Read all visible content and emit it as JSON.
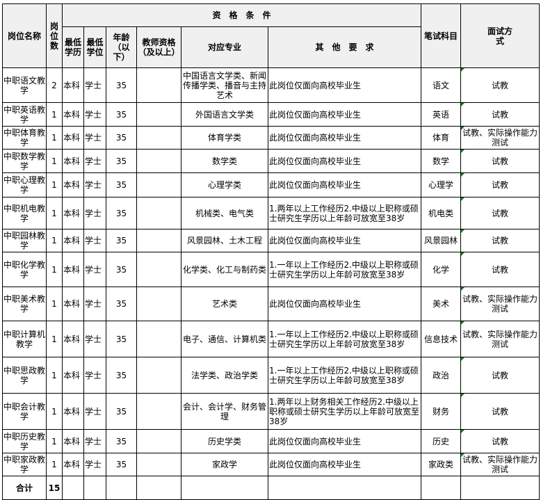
{
  "header": {
    "position_name": "岗位名称",
    "count": "岗位数",
    "qualifications": "资　格　条　件",
    "min_education": "最低学历",
    "min_degree": "最低学位",
    "age": "年龄（以下）",
    "teacher_cert": "教师资格（及以上）",
    "major": "对应专业",
    "other": "其　他　要　求",
    "written_subject": "笔试科目",
    "interview": "面试方式"
  },
  "rows": [
    {
      "name": "中职语文教学",
      "count": "2",
      "edu": "本科",
      "degree": "学士",
      "age": "35",
      "cert": "",
      "major": "中国语言文学类、新闻传播学类、播音与主持艺术",
      "other": "此岗位仅面向高校毕业生",
      "subject": "语文",
      "interview": "试教"
    },
    {
      "name": "中职英语教学",
      "count": "1",
      "edu": "本科",
      "degree": "学士",
      "age": "35",
      "cert": "",
      "major": "外国语言文学类",
      "other": "此岗位仅面向高校毕业生",
      "subject": "英语",
      "interview": "试教"
    },
    {
      "name": "中职体育教学",
      "count": "1",
      "edu": "本科",
      "degree": "学士",
      "age": "35",
      "cert": "",
      "major": "体育学类",
      "other": "此岗位仅面向高校毕业生",
      "subject": "体育",
      "interview": "试教、实际操作能力测试"
    },
    {
      "name": "中职数学教学",
      "count": "1",
      "edu": "本科",
      "degree": "学士",
      "age": "35",
      "cert": "",
      "major": "数学类",
      "other": "此岗位仅面向高校毕业生",
      "subject": "数学",
      "interview": "试教"
    },
    {
      "name": "中职心理教学",
      "count": "1",
      "edu": "本科",
      "degree": "学士",
      "age": "35",
      "cert": "",
      "major": "心理学类",
      "other": "此岗位仅面向高校毕业生",
      "subject": "心理学",
      "interview": "试教"
    },
    {
      "name": "中职机电教学",
      "count": "1",
      "edu": "本科",
      "degree": "学士",
      "age": "35",
      "cert": "",
      "major": "机械类、电气类",
      "other": "1.两年以上工作经历2.中级以上职称或硕士研究生学历以上年龄可放宽至38岁",
      "subject": "机电类",
      "interview": "试教"
    },
    {
      "name": "中职园林教学",
      "count": "1",
      "edu": "本科",
      "degree": "学士",
      "age": "35",
      "cert": "",
      "major": "风景园林、土木工程",
      "other": "此岗位仅面向高校毕业生",
      "subject": "风景园林",
      "interview": "试教"
    },
    {
      "name": "中职化学教学",
      "count": "1",
      "edu": "本科",
      "degree": "学士",
      "age": "35",
      "cert": "",
      "major": "化学类、化工与制药类",
      "other": "1.一年以上工作经历2.中级以上职称或硕士研究生学历以上年龄可放宽至38岁",
      "subject": "化学",
      "interview": "试教"
    },
    {
      "name": "中职美术教学",
      "count": "1",
      "edu": "本科",
      "degree": "学士",
      "age": "35",
      "cert": "",
      "major": "艺术类",
      "other": "此岗位仅面向高校毕业生",
      "subject": "美术",
      "interview": "试教、实际操作能力测试"
    },
    {
      "name": "中职计算机教学",
      "count": "1",
      "edu": "本科",
      "degree": "学士",
      "age": "35",
      "cert": "",
      "major": "电子、通信、计算机类",
      "other": "1.一年以上工作经历2.中级以上职称或硕士研究生学历以上年龄可放宽至38岁",
      "subject": "信息技术",
      "interview": "试教、实际操作能力测试"
    },
    {
      "name": "中职思政教学",
      "count": "1",
      "edu": "本科",
      "degree": "学士",
      "age": "35",
      "cert": "",
      "major": "法学类、政治学类",
      "other": "1.一年以上工作经历2.中级以上职称或硕士研究生学历以上年龄可放宽至38岁",
      "subject": "政治",
      "interview": "试教"
    },
    {
      "name": "中职会计教学",
      "count": "1",
      "edu": "本科",
      "degree": "学士",
      "age": "35",
      "cert": "",
      "major": "会计、会计学、财务管理",
      "other": "1.两年以上财务相关工作经历2.中级以上职称或硕士研究生学历以上年龄可放宽至38岁",
      "subject": "财务",
      "interview": "试教"
    },
    {
      "name": "中职历史教学",
      "count": "1",
      "edu": "本科",
      "degree": "学士",
      "age": "35",
      "cert": "",
      "major": "历史学类",
      "other": "此岗位仅面向高校毕业生",
      "subject": "历史",
      "interview": "试教"
    },
    {
      "name": "中职家政教学",
      "count": "1",
      "edu": "本科",
      "degree": "学士",
      "age": "35",
      "cert": "",
      "major": "家政学",
      "other": "此岗位仅面向高校毕业生",
      "subject": "家政类",
      "interview": "试教、实际操作能力测试"
    }
  ],
  "total": {
    "label": "合计",
    "count": "15"
  }
}
